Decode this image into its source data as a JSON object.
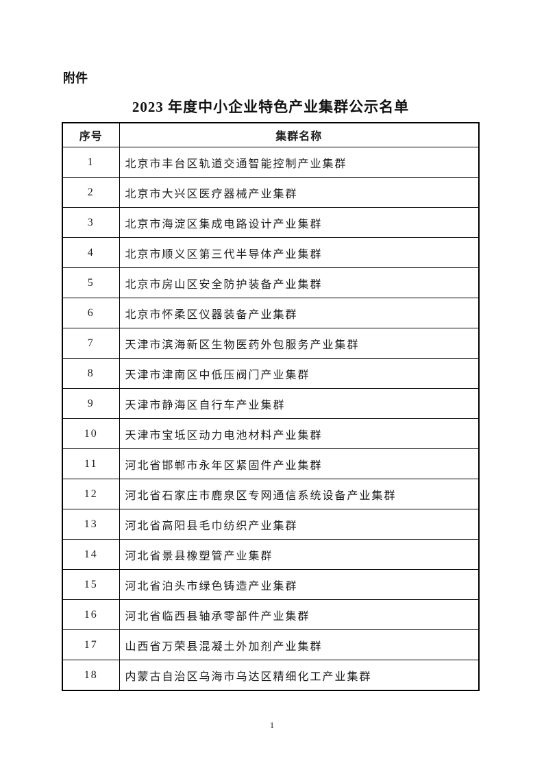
{
  "document": {
    "attachment_label": "附件",
    "title": "2023 年度中小企业特色产业集群公示名单",
    "page_number": "1"
  },
  "table": {
    "headers": {
      "index": "序号",
      "name": "集群名称"
    },
    "rows": [
      {
        "no": "1",
        "name": "北京市丰台区轨道交通智能控制产业集群"
      },
      {
        "no": "2",
        "name": "北京市大兴区医疗器械产业集群"
      },
      {
        "no": "3",
        "name": "北京市海淀区集成电路设计产业集群"
      },
      {
        "no": "4",
        "name": "北京市顺义区第三代半导体产业集群"
      },
      {
        "no": "5",
        "name": "北京市房山区安全防护装备产业集群"
      },
      {
        "no": "6",
        "name": "北京市怀柔区仪器装备产业集群"
      },
      {
        "no": "7",
        "name": "天津市滨海新区生物医药外包服务产业集群"
      },
      {
        "no": "8",
        "name": "天津市津南区中低压阀门产业集群"
      },
      {
        "no": "9",
        "name": "天津市静海区自行车产业集群"
      },
      {
        "no": "10",
        "name": "天津市宝坻区动力电池材料产业集群"
      },
      {
        "no": "11",
        "name": "河北省邯郸市永年区紧固件产业集群"
      },
      {
        "no": "12",
        "name": "河北省石家庄市鹿泉区专网通信系统设备产业集群"
      },
      {
        "no": "13",
        "name": "河北省高阳县毛巾纺织产业集群"
      },
      {
        "no": "14",
        "name": "河北省景县橡塑管产业集群"
      },
      {
        "no": "15",
        "name": "河北省泊头市绿色铸造产业集群"
      },
      {
        "no": "16",
        "name": "河北省临西县轴承零部件产业集群"
      },
      {
        "no": "17",
        "name": "山西省万荣县混凝土外加剂产业集群"
      },
      {
        "no": "18",
        "name": "内蒙古自治区乌海市乌达区精细化工产业集群"
      }
    ]
  },
  "colors": {
    "background": "#ffffff",
    "text": "#1a1a1a",
    "border": "#000000"
  }
}
